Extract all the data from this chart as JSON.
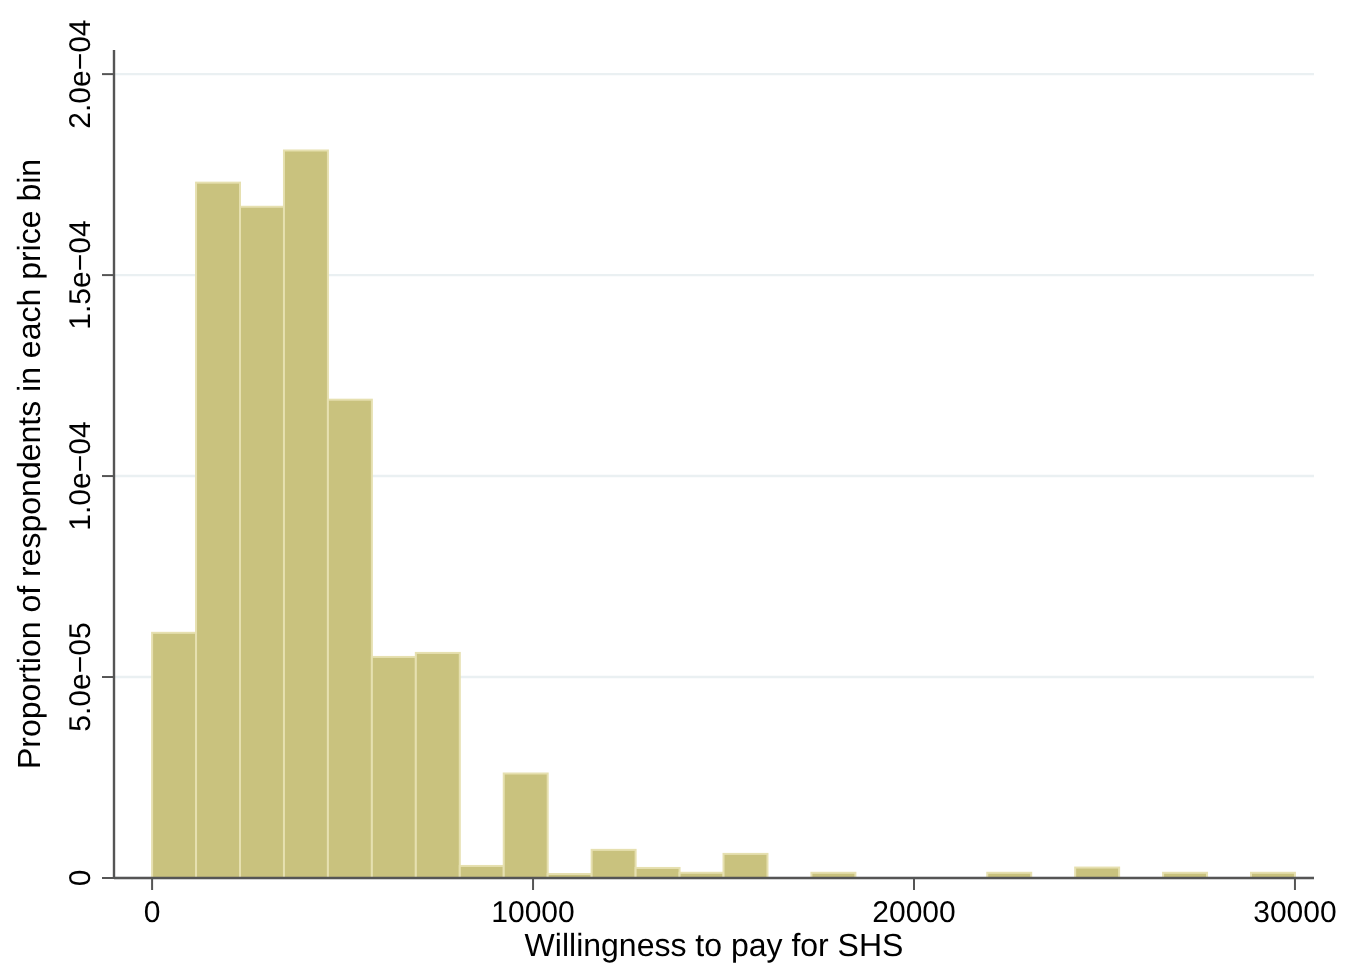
{
  "chart_data": {
    "type": "histogram",
    "xlabel": "Willingness to pay for SHS",
    "ylabel": "Proportion of respondents in each price bin",
    "bins": [
      0,
      1153.8,
      2307.7,
      3461.5,
      4615.4,
      5769.2,
      6923.1,
      8076.9,
      9230.8,
      10384.6,
      11538.5,
      12692.3,
      13846.2,
      15000,
      16153.8,
      17307.7,
      18461.5,
      19615.4,
      20769.2,
      21923.1,
      23076.9,
      24230.8,
      25384.6,
      26538.5,
      27692.3,
      28846.2,
      30000
    ],
    "values": [
      6.1e-05,
      0.000173,
      0.000167,
      0.000181,
      0.000119,
      5.5e-05,
      5.6e-05,
      3e-06,
      2.6e-05,
      1e-06,
      7e-06,
      2.5e-06,
      1.3e-06,
      6e-06,
      0,
      1.3e-06,
      0,
      0,
      0,
      1.3e-06,
      0,
      2.6e-06,
      0,
      1.3e-06,
      0,
      1.3e-06
    ],
    "color": "#c9c27e",
    "xlim": [
      -1000,
      30500
    ],
    "xticks": [
      0,
      10000,
      20000,
      30000
    ],
    "ylim": [
      0,
      0.000206
    ],
    "yticks": [
      0,
      {
        "value": 5e-05,
        "label": "5.0e−05"
      },
      {
        "value": 0.0001,
        "label": "1.0e−04"
      },
      {
        "value": 0.00015,
        "label": "1.5e−04"
      },
      {
        "value": 0.0002,
        "label": "2.0e−04"
      }
    ],
    "grid": "y"
  }
}
